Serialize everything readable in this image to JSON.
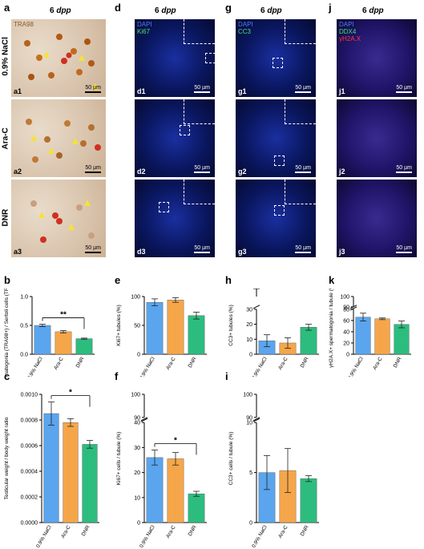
{
  "panel_letters": {
    "a": "a",
    "b": "b",
    "c": "c",
    "d": "d",
    "e": "e",
    "f": "f",
    "g": "g",
    "h": "h",
    "i": "i",
    "j": "j",
    "k": "k"
  },
  "column_title": "6 dpp",
  "column_title_parts": {
    "pre": "6 ",
    "italic": "dpp"
  },
  "row_labels": [
    "0.9% NaCl",
    "Ara-C",
    "DNR"
  ],
  "image_panels": {
    "a": {
      "stain": "TRA98",
      "subs": [
        "a1",
        "a2",
        "a3"
      ]
    },
    "d": {
      "channels": [
        "DAPI",
        "Ki67"
      ],
      "subs": [
        "d1",
        "d2",
        "d3"
      ]
    },
    "g": {
      "channels": [
        "DAPI",
        "CC3"
      ],
      "subs": [
        "g1",
        "g2",
        "g3"
      ]
    },
    "j": {
      "channels": [
        "DAPI",
        "DDX4",
        "γH2A.X"
      ],
      "subs": [
        "j1",
        "j2",
        "j3"
      ]
    }
  },
  "scale_bar": "50 µm",
  "colors": {
    "nacl": "#5aa5ee",
    "arac": "#f6a64a",
    "dnr": "#2cbd7e",
    "dapi": "#4f7dff",
    "ki67": "#46e07a",
    "ddx4": "#46e07a",
    "h2ax": "#ff3a3a"
  },
  "chart_data": [
    {
      "panel": "b",
      "type": "bar",
      "categories": [
        "0.9% NaCl",
        "Ara-C",
        "DNR"
      ],
      "values": [
        0.5,
        0.39,
        0.27
      ],
      "errors": [
        0.02,
        0.02,
        0.01
      ],
      "ylabel": "Spermatogonia (TRA98+) / Sertoli cells (TRA98-) ratio",
      "ylim": [
        0,
        1.0
      ],
      "yticks": [
        "0.0",
        "0.5",
        "1.0"
      ],
      "significance": [
        {
          "from": 0,
          "to": 2,
          "label": "**"
        }
      ]
    },
    {
      "panel": "c",
      "type": "bar",
      "categories": [
        "0.9% NaCl",
        "Ara-C",
        "DNR"
      ],
      "values": [
        0.00085,
        0.00078,
        0.00061
      ],
      "errors": [
        9e-05,
        3e-05,
        3e-05
      ],
      "ylabel": "Testicular weight / body weight ratio",
      "ylim": [
        0,
        0.001
      ],
      "yticks": [
        "0.0000",
        "0.0002",
        "0.0004",
        "0.0006",
        "0.0008",
        "0.0010"
      ],
      "significance": [
        {
          "from": 0,
          "to": 2,
          "label": "*"
        }
      ]
    },
    {
      "panel": "e",
      "type": "bar",
      "categories": [
        "0.9% NaCl",
        "Ara-C",
        "DNR"
      ],
      "values": [
        90,
        94,
        67
      ],
      "errors": [
        6,
        4,
        6
      ],
      "ylabel": "Ki67+ tubules (%)",
      "ylim": [
        0,
        100
      ],
      "yticks": [
        "0",
        "50",
        "100"
      ]
    },
    {
      "panel": "f",
      "type": "bar",
      "categories": [
        "0.9% NaCl",
        "Ara-C",
        "DNR"
      ],
      "values": [
        26,
        25.5,
        11.5
      ],
      "errors": [
        3,
        2.5,
        1
      ],
      "ylabel": "Ki67+ cells / tubule (%)",
      "ylim": [
        0,
        100
      ],
      "yticks": [
        "0",
        "10",
        "20",
        "30",
        "40",
        "90",
        "100"
      ],
      "axis_break": [
        40,
        90
      ],
      "significance": [
        {
          "from": 0,
          "to": 2,
          "label": "*"
        }
      ]
    },
    {
      "panel": "h",
      "type": "bar",
      "categories": [
        "0.9% NaCl",
        "Ara-C",
        "DNR"
      ],
      "values": [
        9,
        7.5,
        18
      ],
      "errors": [
        4,
        3.5,
        2
      ],
      "ylabel": "CC3+ tubules (%)",
      "ylim": [
        0,
        100
      ],
      "yticks": [
        "0",
        "10",
        "20",
        "30",
        "100"
      ],
      "axis_break": [
        30,
        100
      ]
    },
    {
      "panel": "i",
      "type": "bar",
      "categories": [
        "0.9% NaCl",
        "Ara-C",
        "DNR"
      ],
      "values": [
        5,
        5.2,
        4.4
      ],
      "errors": [
        1.7,
        2.2,
        0.3
      ],
      "ylabel": "CC3+ cells / tubule (%)",
      "ylim": [
        0,
        100
      ],
      "yticks": [
        "0",
        "5",
        "10",
        "90",
        "100"
      ],
      "axis_break": [
        10,
        90
      ]
    },
    {
      "panel": "k",
      "type": "bar",
      "categories": [
        "0.9% NaCl",
        "Ara-C",
        "DNR"
      ],
      "values": [
        66,
        63,
        53
      ],
      "errors": [
        7,
        1.5,
        6
      ],
      "ylabel": "γH2A.X+ spermatogonia / tubule (%)",
      "ylim": [
        0,
        100
      ],
      "yticks": [
        "0",
        "20",
        "40",
        "60",
        "80",
        "90",
        "100"
      ],
      "axis_break": [
        80,
        90
      ]
    }
  ]
}
